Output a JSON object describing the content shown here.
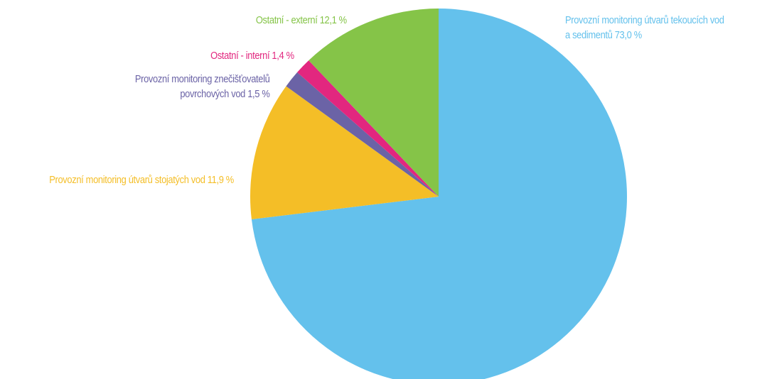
{
  "chart_data": {
    "type": "pie",
    "start_angle_deg": 0,
    "direction": "clockwise",
    "grid": false,
    "legend": "none",
    "slices": [
      {
        "name_lines": [
          "Provozní monitoring útvarů tekoucích vod",
          "a sedimentů 73,0 %"
        ],
        "value": 73.0,
        "color": "#64c1ec"
      },
      {
        "name_lines": [
          "Provozní monitoring útvarů stojatých vod 11,9 %"
        ],
        "value": 11.9,
        "color": "#f4be27"
      },
      {
        "name_lines": [
          "Provozní monitoring znečišťovatelů",
          "povrchových vod 1,5 %"
        ],
        "value": 1.5,
        "color": "#6b63a6"
      },
      {
        "name_lines": [
          "Ostatní - interní 1,4 %"
        ],
        "value": 1.4,
        "color": "#e2277f"
      },
      {
        "name_lines": [
          "Ostatní - externí 12,1 %"
        ],
        "value": 12.1,
        "color": "#85c448"
      }
    ]
  }
}
